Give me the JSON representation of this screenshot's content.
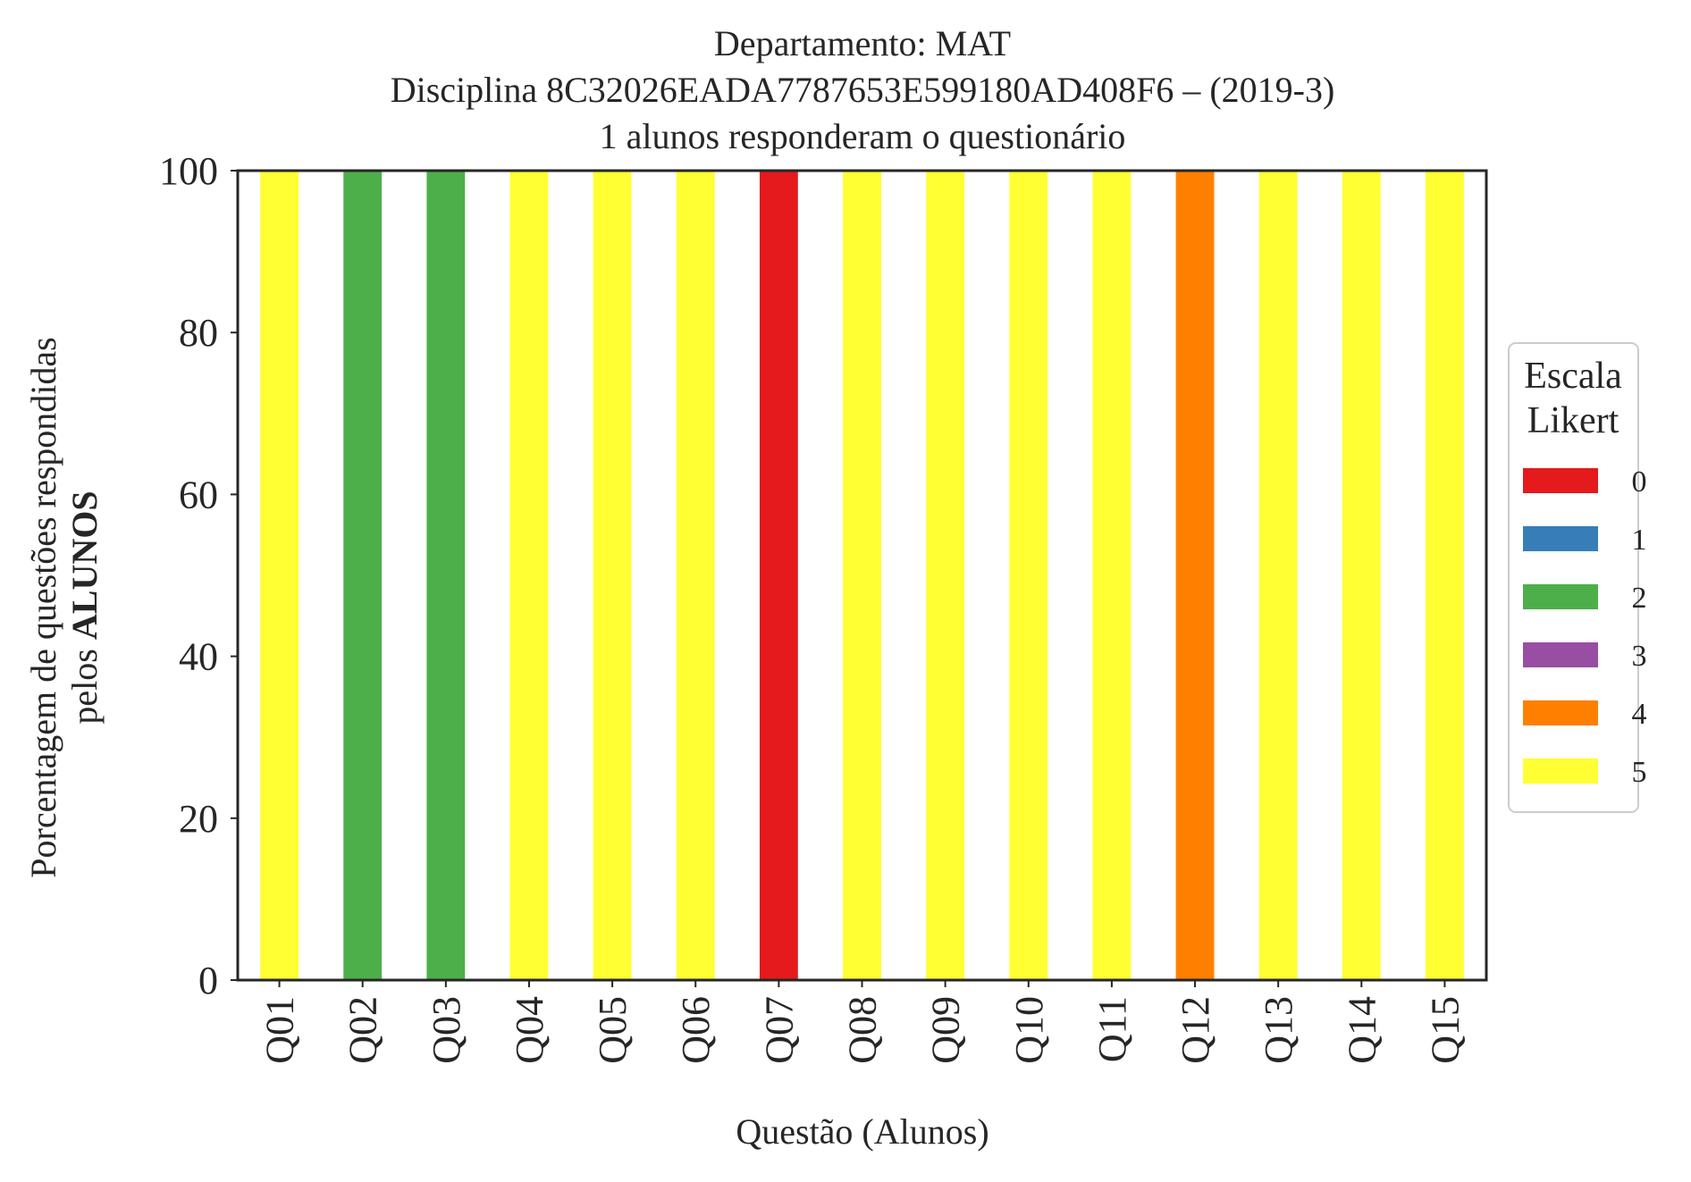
{
  "chart_data": {
    "type": "bar",
    "stacked": true,
    "title": [
      "Departamento: MAT",
      "Disciplina 8C32026EADA7787653E599180AD408F6 – (2019-3)",
      "1 alunos responderam o questionário"
    ],
    "xlabel": "Questão (Alunos)",
    "ylabel_line1": "Porcentagem de questões respondidas",
    "ylabel_line2_prefix": "pelos ",
    "ylabel_line2_bold": "ALUNOS",
    "ylim": [
      0,
      100
    ],
    "yticks": [
      0,
      20,
      40,
      60,
      80,
      100
    ],
    "grid": false,
    "legend": {
      "title_line1": "Escala",
      "title_line2": "Likert",
      "placement": "right-center",
      "entries": [
        "0",
        "1",
        "2",
        "3",
        "4",
        "5"
      ]
    },
    "categories": [
      "Q01",
      "Q02",
      "Q03",
      "Q04",
      "Q05",
      "Q06",
      "Q07",
      "Q08",
      "Q09",
      "Q10",
      "Q11",
      "Q12",
      "Q13",
      "Q14",
      "Q15"
    ],
    "series": [
      {
        "name": "0",
        "color": "#e41a1c",
        "values": [
          0,
          0,
          0,
          0,
          0,
          0,
          100,
          0,
          0,
          0,
          0,
          0,
          0,
          0,
          0
        ]
      },
      {
        "name": "1",
        "color": "#377eb8",
        "values": [
          0,
          0,
          0,
          0,
          0,
          0,
          0,
          0,
          0,
          0,
          0,
          0,
          0,
          0,
          0
        ]
      },
      {
        "name": "2",
        "color": "#4daf4a",
        "values": [
          0,
          100,
          100,
          0,
          0,
          0,
          0,
          0,
          0,
          0,
          0,
          0,
          0,
          0,
          0
        ]
      },
      {
        "name": "3",
        "color": "#984ea3",
        "values": [
          0,
          0,
          0,
          0,
          0,
          0,
          0,
          0,
          0,
          0,
          0,
          0,
          0,
          0,
          0
        ]
      },
      {
        "name": "4",
        "color": "#ff7f00",
        "values": [
          0,
          0,
          0,
          0,
          0,
          0,
          0,
          0,
          0,
          0,
          0,
          100,
          0,
          0,
          0
        ]
      },
      {
        "name": "5",
        "color": "#ffff33",
        "values": [
          100,
          0,
          0,
          100,
          100,
          100,
          0,
          100,
          100,
          100,
          100,
          0,
          100,
          100,
          100
        ]
      }
    ]
  }
}
